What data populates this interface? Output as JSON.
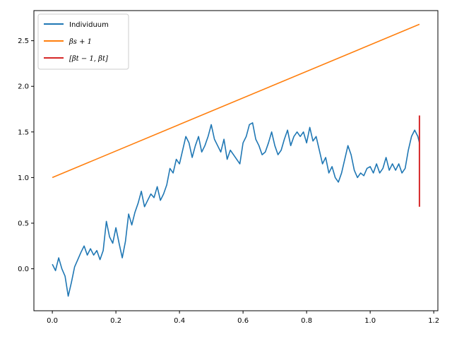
{
  "chart_data": {
    "type": "line",
    "xlim": [
      -0.058,
      1.213
    ],
    "ylim": [
      -0.46,
      2.83
    ],
    "xticks": [
      0.0,
      0.2,
      0.4,
      0.6,
      0.8,
      1.0,
      1.2
    ],
    "xtick_labels": [
      "0.0",
      "0.2",
      "0.4",
      "0.6",
      "0.8",
      "1.0",
      "1.2"
    ],
    "yticks": [
      0.0,
      0.5,
      1.0,
      1.5,
      2.0,
      2.5
    ],
    "ytick_labels": [
      "0.0",
      "0.5",
      "1.0",
      "1.5",
      "2.0",
      "2.5"
    ],
    "grid": false,
    "legend_position": "upper-left",
    "series": [
      {
        "name": "Individuum",
        "kind": "line",
        "color": "#1f77b4",
        "x": [
          0.0,
          0.01,
          0.02,
          0.03,
          0.04,
          0.05,
          0.06,
          0.07,
          0.08,
          0.09,
          0.1,
          0.11,
          0.12,
          0.13,
          0.14,
          0.15,
          0.16,
          0.17,
          0.18,
          0.19,
          0.2,
          0.21,
          0.22,
          0.23,
          0.24,
          0.25,
          0.26,
          0.27,
          0.28,
          0.29,
          0.3,
          0.31,
          0.32,
          0.33,
          0.34,
          0.35,
          0.36,
          0.37,
          0.38,
          0.39,
          0.4,
          0.41,
          0.42,
          0.43,
          0.44,
          0.45,
          0.46,
          0.47,
          0.48,
          0.49,
          0.5,
          0.51,
          0.52,
          0.53,
          0.54,
          0.55,
          0.56,
          0.57,
          0.58,
          0.59,
          0.6,
          0.61,
          0.62,
          0.63,
          0.64,
          0.65,
          0.66,
          0.67,
          0.68,
          0.69,
          0.7,
          0.71,
          0.72,
          0.73,
          0.74,
          0.75,
          0.76,
          0.77,
          0.78,
          0.79,
          0.8,
          0.81,
          0.82,
          0.83,
          0.84,
          0.85,
          0.86,
          0.87,
          0.88,
          0.89,
          0.9,
          0.91,
          0.92,
          0.93,
          0.94,
          0.95,
          0.96,
          0.97,
          0.98,
          0.99,
          1.0,
          1.01,
          1.02,
          1.03,
          1.04,
          1.05,
          1.06,
          1.07,
          1.08,
          1.09,
          1.1,
          1.11,
          1.12,
          1.13,
          1.14,
          1.15,
          1.155
        ],
        "y": [
          0.05,
          -0.02,
          0.12,
          0.0,
          -0.08,
          -0.3,
          -0.15,
          0.02,
          0.1,
          0.18,
          0.25,
          0.15,
          0.22,
          0.15,
          0.2,
          0.1,
          0.2,
          0.52,
          0.35,
          0.28,
          0.45,
          0.28,
          0.12,
          0.3,
          0.6,
          0.48,
          0.62,
          0.72,
          0.85,
          0.68,
          0.75,
          0.82,
          0.78,
          0.9,
          0.75,
          0.82,
          0.92,
          1.1,
          1.05,
          1.2,
          1.15,
          1.3,
          1.45,
          1.38,
          1.22,
          1.35,
          1.45,
          1.28,
          1.35,
          1.45,
          1.58,
          1.42,
          1.35,
          1.28,
          1.42,
          1.2,
          1.3,
          1.25,
          1.2,
          1.15,
          1.38,
          1.45,
          1.58,
          1.6,
          1.42,
          1.35,
          1.25,
          1.28,
          1.38,
          1.5,
          1.35,
          1.25,
          1.3,
          1.42,
          1.52,
          1.35,
          1.45,
          1.5,
          1.45,
          1.5,
          1.38,
          1.55,
          1.4,
          1.45,
          1.3,
          1.15,
          1.22,
          1.05,
          1.12,
          1.0,
          0.95,
          1.05,
          1.2,
          1.35,
          1.25,
          1.08,
          1.0,
          1.05,
          1.02,
          1.1,
          1.12,
          1.05,
          1.15,
          1.05,
          1.1,
          1.22,
          1.08,
          1.15,
          1.08,
          1.15,
          1.05,
          1.1,
          1.3,
          1.45,
          1.52,
          1.45,
          1.38
        ]
      },
      {
        "name": "βs + 1",
        "kind": "line",
        "color": "#ff7f0e",
        "x": [
          0.0,
          1.155
        ],
        "y": [
          1.0,
          2.68
        ]
      },
      {
        "name": "[βt − 1, βt]",
        "kind": "vline",
        "color": "#d62728",
        "x": [
          1.155,
          1.155
        ],
        "y": [
          0.68,
          1.68
        ]
      }
    ]
  }
}
